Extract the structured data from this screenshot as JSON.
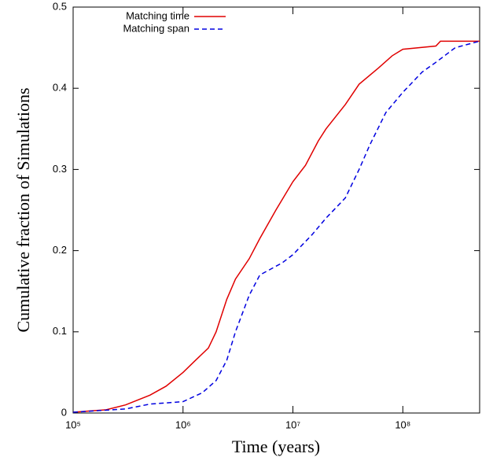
{
  "chart_data": {
    "type": "line",
    "xlabel": "Time (years)",
    "ylabel": "Cumulative fraction of Simulations",
    "xscale": "log",
    "xlim": [
      100000,
      500000000
    ],
    "ylim": [
      0,
      0.5
    ],
    "xticks": [
      {
        "value": 100000,
        "label": "10⁵"
      },
      {
        "value": 1000000,
        "label": "10⁶"
      },
      {
        "value": 10000000,
        "label": "10⁷"
      },
      {
        "value": 100000000,
        "label": "10⁸"
      }
    ],
    "yticks": [
      0,
      0.1,
      0.2,
      0.3,
      0.4,
      0.5
    ],
    "legend": "upper left",
    "series": [
      {
        "name": "Matching time",
        "color": "#e00000",
        "linestyle": "solid",
        "x": [
          100000,
          200000,
          300000,
          500000,
          700000,
          1000000,
          1300000,
          1700000,
          2000000,
          2500000,
          3000000,
          4000000,
          5000000,
          7000000,
          10000000,
          13000000,
          17000000,
          20000000,
          30000000,
          40000000,
          60000000,
          80000000,
          100000000,
          200000000,
          220000000,
          500000000
        ],
        "values": [
          0.001,
          0.004,
          0.01,
          0.022,
          0.033,
          0.05,
          0.065,
          0.08,
          0.1,
          0.14,
          0.165,
          0.19,
          0.215,
          0.25,
          0.285,
          0.305,
          0.335,
          0.35,
          0.38,
          0.405,
          0.425,
          0.44,
          0.448,
          0.452,
          0.458,
          0.458
        ]
      },
      {
        "name": "Matching span",
        "color": "#0000e0",
        "linestyle": "dashed",
        "x": [
          100000,
          300000,
          500000,
          1000000,
          1500000,
          2000000,
          2500000,
          3000000,
          4000000,
          5000000,
          8000000,
          10000000,
          15000000,
          20000000,
          30000000,
          40000000,
          50000000,
          70000000,
          100000000,
          150000000,
          200000000,
          300000000,
          500000000
        ],
        "values": [
          0.001,
          0.005,
          0.011,
          0.014,
          0.025,
          0.04,
          0.065,
          0.1,
          0.145,
          0.17,
          0.185,
          0.195,
          0.22,
          0.24,
          0.265,
          0.3,
          0.33,
          0.37,
          0.395,
          0.42,
          0.432,
          0.45,
          0.458
        ]
      }
    ]
  }
}
